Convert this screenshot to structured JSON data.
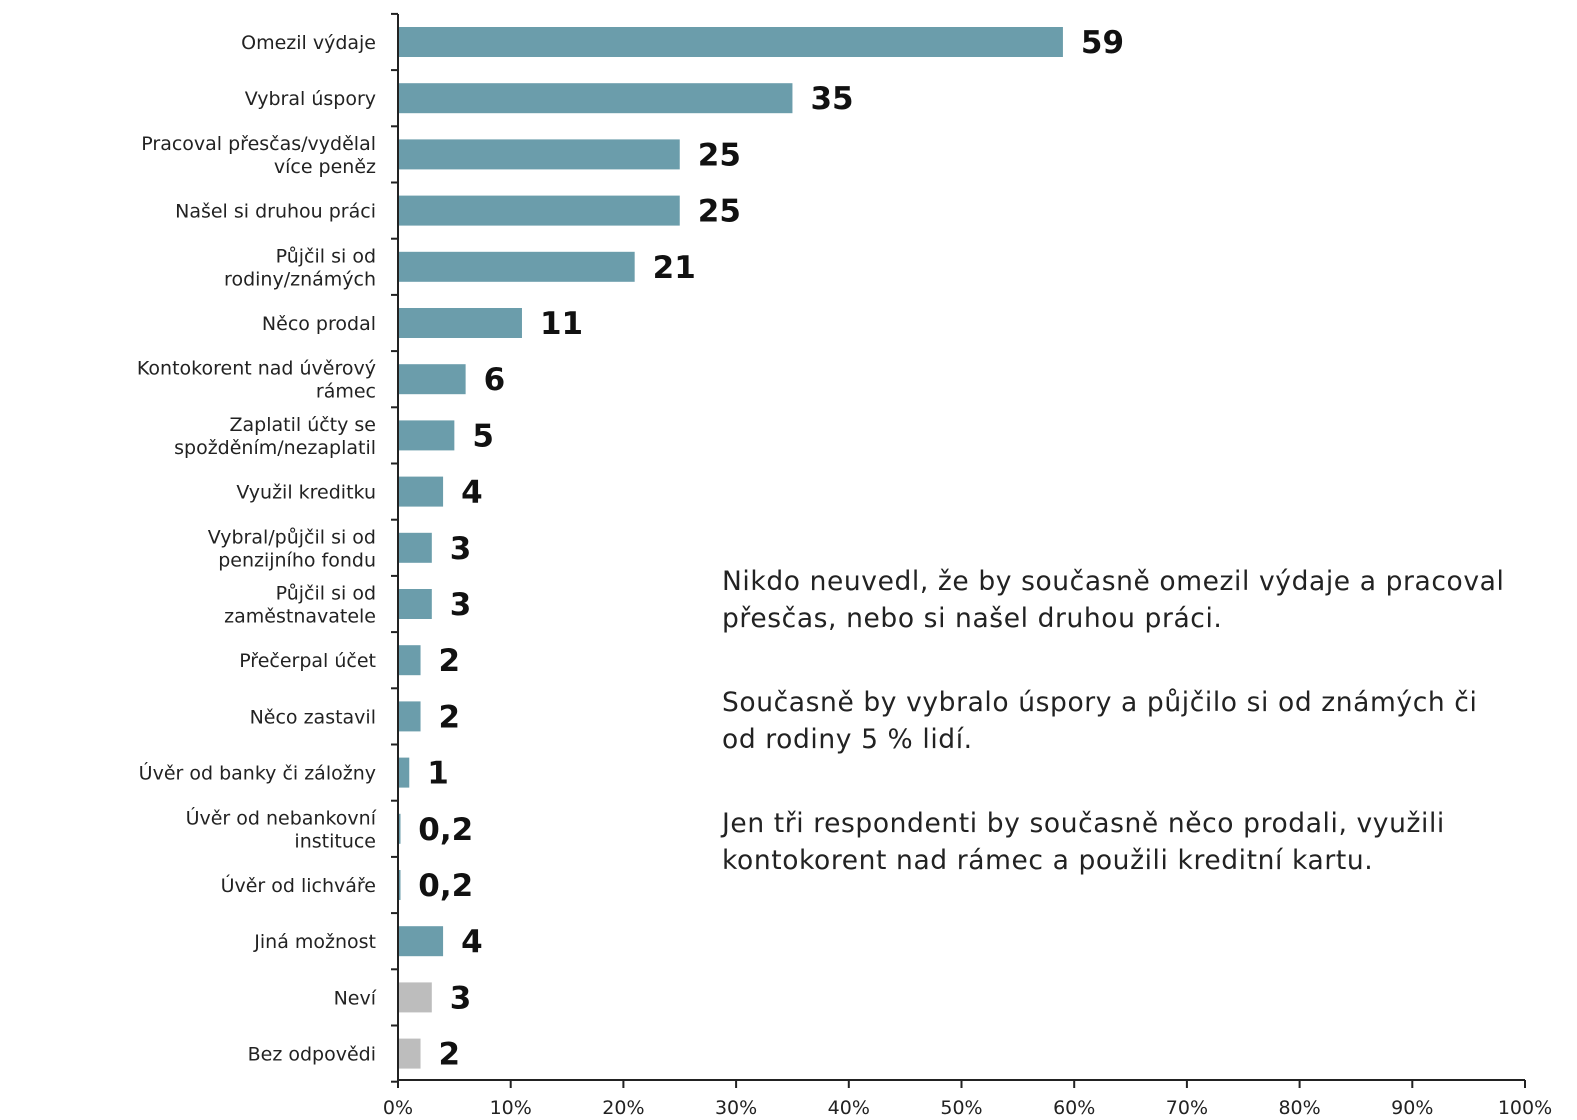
{
  "chart_data": {
    "type": "bar",
    "orientation": "horizontal",
    "categories": [
      "Omezil výdaje",
      "Vybral úspory",
      "Pracoval přesčas/vydělal více peněz",
      "Našel si druhou práci",
      "Půjčil si od rodiny/známých",
      "Něco prodal",
      "Kontokorent nad úvěrový rámec",
      "Zaplatil účty se zpožděním/nezaplatil",
      "Využil kreditku",
      "Vybral/půjčil si od penzijního fondu",
      "Půjčil si od zaměstnavatele",
      "Přečerpal účet",
      "Něco zastavil",
      "Úvěr od banky či záložny",
      "Úvěr od nebankovní instituce",
      "Úvěr od lichváře",
      "Jiná možnost",
      "Neví",
      "Bez odpovědi"
    ],
    "category_lines": [
      [
        "Omezil výdaje"
      ],
      [
        "Vybral úspory"
      ],
      [
        "Pracoval přesčas/vydělal",
        "více peněz"
      ],
      [
        "Našel si druhou práci"
      ],
      [
        "Půjčil si od",
        "rodiny/známých"
      ],
      [
        "Něco prodal"
      ],
      [
        "Kontokorent nad úvěrový",
        "rámec"
      ],
      [
        "Zaplatil účty se",
        "spožděním/nezaplatil"
      ],
      [
        "Využil kreditku"
      ],
      [
        "Vybral/půjčil si od",
        "penzijního fondu"
      ],
      [
        "Půjčil si od",
        "zaměstnavatele"
      ],
      [
        "Přečerpal účet"
      ],
      [
        "Něco zastavil"
      ],
      [
        "Úvěr od banky či záložny"
      ],
      [
        "Úvěr od nebankovní",
        "instituce"
      ],
      [
        "Úvěr od lichváře"
      ],
      [
        "Jiná možnost"
      ],
      [
        "Neví"
      ],
      [
        "Bez odpovědi"
      ]
    ],
    "values": [
      59,
      35,
      25,
      25,
      21,
      11,
      6,
      5,
      4,
      3,
      3,
      2,
      2,
      1,
      0.2,
      0.2,
      4,
      3,
      2
    ],
    "value_labels": [
      "59",
      "35",
      "25",
      "25",
      "21",
      "11",
      "6",
      "5",
      "4",
      "3",
      "3",
      "2",
      "2",
      "1",
      "0,2",
      "0,2",
      "4",
      "3",
      "2"
    ],
    "bar_colors": [
      "#6b9dab",
      "#6b9dab",
      "#6b9dab",
      "#6b9dab",
      "#6b9dab",
      "#6b9dab",
      "#6b9dab",
      "#6b9dab",
      "#6b9dab",
      "#6b9dab",
      "#6b9dab",
      "#6b9dab",
      "#6b9dab",
      "#6b9dab",
      "#6b9dab",
      "#6b9dab",
      "#6b9dab",
      "#bdbdbd",
      "#bdbdbd"
    ],
    "x_ticks": [
      "0%",
      "10%",
      "20%",
      "30%",
      "40%",
      "50%",
      "60%",
      "70%",
      "80%",
      "90%",
      "100%"
    ],
    "xlim": [
      0,
      100
    ],
    "grid": false,
    "title": "",
    "xlabel": "",
    "ylabel": ""
  },
  "notes": [
    "Nikdo neuvedl, že by současně omezil výdaje a pracoval přesčas, nebo si našel druhou práci.",
    "Současně by vybralo úspory a půjčilo si od známých či od rodiny 5 % lidí.",
    "Jen tři respondenti by současně něco prodali, využili kontokorent nad rámec a použili kreditní kartu."
  ]
}
